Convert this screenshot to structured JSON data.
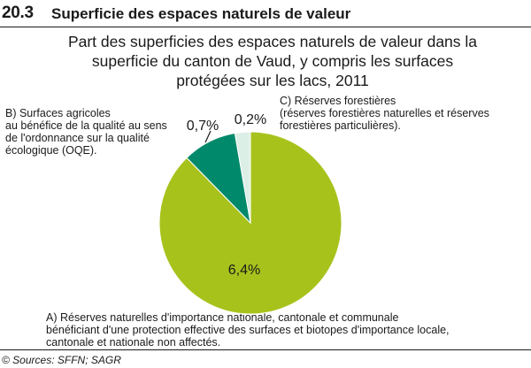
{
  "header": {
    "figure_number": "20.3",
    "title": "Superficie des espaces naturels de valeur"
  },
  "subtitle_lines": [
    "Part des superficies des espaces naturels de valeur dans la",
    "superficie du canton de Vaud, y compris les surfaces",
    "protégées sur les lacs, 2011"
  ],
  "notes": {
    "b_lines": [
      "B) Surfaces agricoles",
      "au bénéfice de la qualité au sens",
      "de l'ordonnance sur la qualité",
      "écologique (OQE)."
    ],
    "c_lines": [
      "C) Réserves forestières",
      "(réserves forestières naturelles et réserves",
      " forestières particulières)."
    ],
    "a_lines": [
      "A) Réserves naturelles d'importance nationale, cantonale et communale",
      "bénéficiant d'une protection effective des surfaces et biotopes d'importance locale,",
      "cantonale et nationale non affectés."
    ]
  },
  "source": "© Sources: SFFN; SAGR",
  "chart_data": {
    "type": "pie",
    "start": "12 o'clock",
    "direction": "clockwise",
    "slices": [
      {
        "key": "A",
        "value": 6.4,
        "label": "6,4%",
        "color": "#a8c21c"
      },
      {
        "key": "B",
        "value": 0.7,
        "label": "0,7%",
        "color": "#00896a"
      },
      {
        "key": "C",
        "value": 0.2,
        "label": "0,2%",
        "color": "#dcefe6"
      }
    ]
  }
}
